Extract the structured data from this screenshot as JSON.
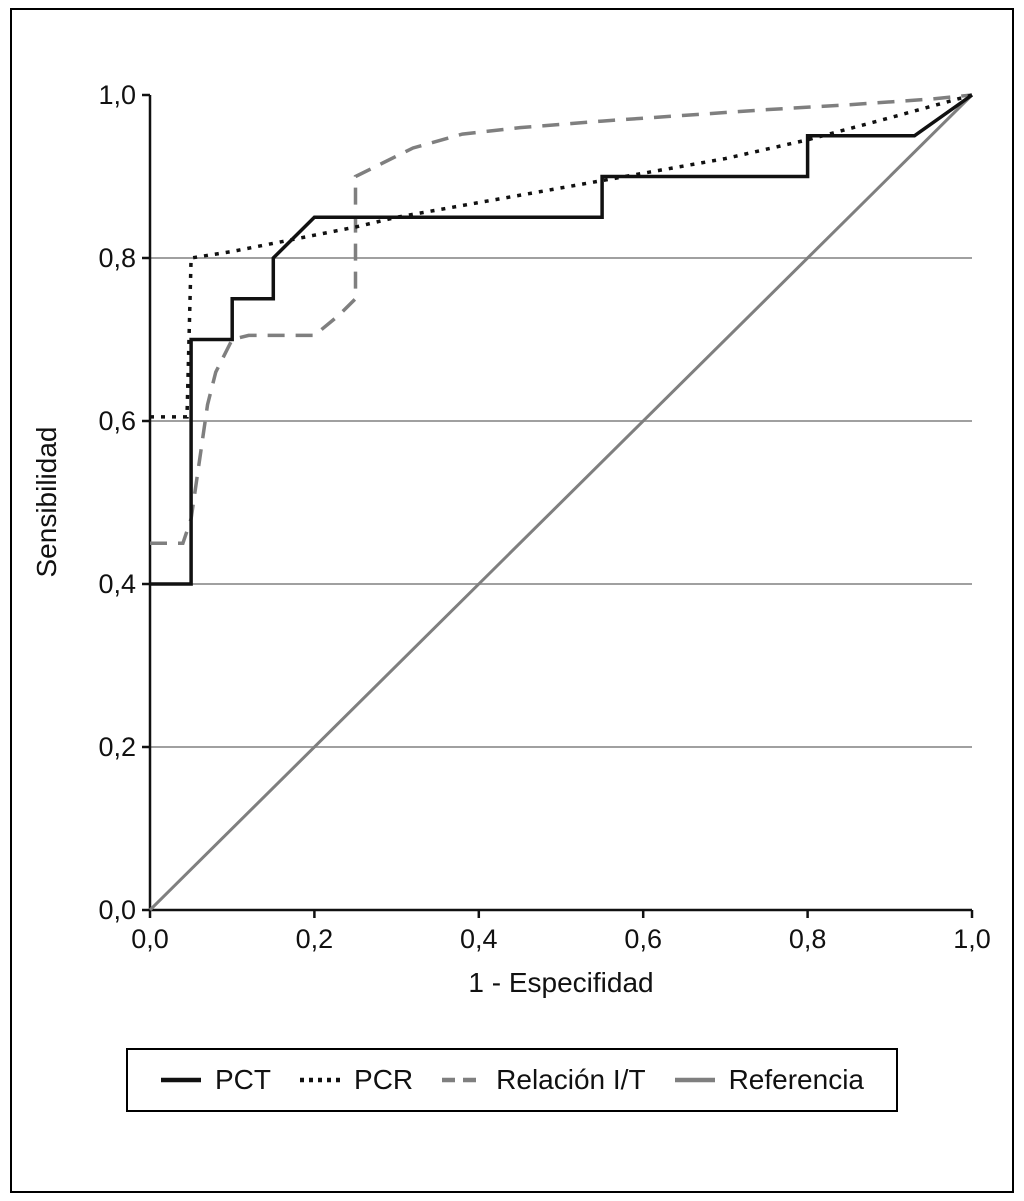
{
  "figure": {
    "border_color": "#000000",
    "background": "#ffffff"
  },
  "colors": {
    "black": "#111111",
    "gray": "#7f7f7f",
    "grid": "#a0a0a0"
  },
  "legend": {
    "position": "bottom",
    "entries": [
      "PCT",
      "PCR",
      "Relación I/T",
      "Referencia"
    ]
  },
  "chart_data": {
    "type": "line",
    "title": "",
    "xlabel": "1 - Especifidad",
    "ylabel": "Sensibilidad",
    "xlim": [
      0,
      1
    ],
    "ylim": [
      0,
      1
    ],
    "grid": "horizontal",
    "gridlines_y": [
      0.2,
      0.4,
      0.6,
      0.8
    ],
    "xticks": {
      "values": [
        0,
        0.2,
        0.4,
        0.6,
        0.8,
        1.0
      ],
      "labels": [
        "0,0",
        "0,2",
        "0,4",
        "0,6",
        "0,8",
        "1,0"
      ]
    },
    "yticks": {
      "values": [
        0,
        0.2,
        0.4,
        0.6,
        0.8,
        1.0
      ],
      "labels": [
        "0,0",
        "0,2",
        "0,4",
        "0,6",
        "0,8",
        "1,0"
      ]
    },
    "series": [
      {
        "name": "PCT",
        "color": "#111111",
        "dash": "solid",
        "width": 3.5,
        "points": [
          [
            0,
            0.4
          ],
          [
            0.05,
            0.4
          ],
          [
            0.05,
            0.7
          ],
          [
            0.1,
            0.7
          ],
          [
            0.1,
            0.75
          ],
          [
            0.15,
            0.75
          ],
          [
            0.15,
            0.8
          ],
          [
            0.2,
            0.85
          ],
          [
            0.55,
            0.85
          ],
          [
            0.55,
            0.9
          ],
          [
            0.8,
            0.9
          ],
          [
            0.8,
            0.95
          ],
          [
            0.93,
            0.95
          ],
          [
            1,
            1
          ]
        ]
      },
      {
        "name": "PCR",
        "color": "#111111",
        "dash": "dotted",
        "width": 3.5,
        "points": [
          [
            0,
            0.605
          ],
          [
            0.045,
            0.605
          ],
          [
            0.05,
            0.8
          ],
          [
            0.1,
            0.808
          ],
          [
            0.15,
            0.818
          ],
          [
            0.2,
            0.828
          ],
          [
            0.25,
            0.838
          ],
          [
            0.3,
            0.85
          ],
          [
            0.4,
            0.868
          ],
          [
            0.5,
            0.886
          ],
          [
            0.6,
            0.904
          ],
          [
            0.7,
            0.922
          ],
          [
            0.8,
            0.945
          ],
          [
            0.9,
            0.972
          ],
          [
            1,
            1
          ]
        ]
      },
      {
        "name": "Relación I/T",
        "color": "#7f7f7f",
        "dash": "dashed",
        "width": 3.5,
        "points": [
          [
            0,
            0.45
          ],
          [
            0.04,
            0.45
          ],
          [
            0.05,
            0.48
          ],
          [
            0.06,
            0.55
          ],
          [
            0.07,
            0.62
          ],
          [
            0.08,
            0.66
          ],
          [
            0.1,
            0.7
          ],
          [
            0.12,
            0.705
          ],
          [
            0.2,
            0.705
          ],
          [
            0.23,
            0.73
          ],
          [
            0.25,
            0.75
          ],
          [
            0.25,
            0.9
          ],
          [
            0.28,
            0.915
          ],
          [
            0.32,
            0.935
          ],
          [
            0.38,
            0.952
          ],
          [
            0.45,
            0.96
          ],
          [
            0.55,
            0.968
          ],
          [
            0.65,
            0.975
          ],
          [
            0.75,
            0.982
          ],
          [
            0.85,
            0.988
          ],
          [
            0.95,
            0.995
          ],
          [
            1,
            1
          ]
        ]
      },
      {
        "name": "Referencia",
        "color": "#7f7f7f",
        "dash": "solid",
        "width": 3,
        "points": [
          [
            0,
            0
          ],
          [
            1,
            1
          ]
        ]
      }
    ]
  }
}
